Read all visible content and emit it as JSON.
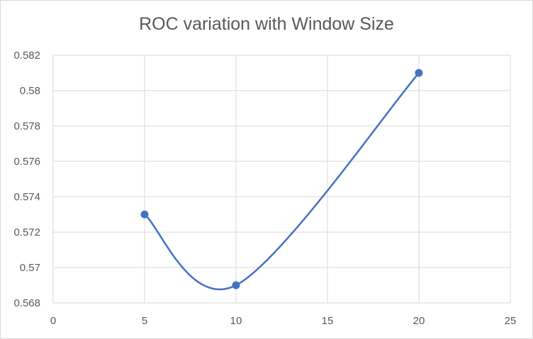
{
  "chart_data": {
    "type": "scatter",
    "title": "ROC variation with Window Size",
    "xlabel": "",
    "ylabel": "",
    "xlim": [
      0,
      25
    ],
    "ylim": [
      0.568,
      0.582
    ],
    "x_ticks": [
      0,
      5,
      10,
      15,
      20,
      25
    ],
    "x_tick_labels": [
      "0",
      "5",
      "10",
      "15",
      "20",
      "25"
    ],
    "y_ticks": [
      0.568,
      0.57,
      0.572,
      0.574,
      0.576,
      0.578,
      0.58,
      0.582
    ],
    "y_tick_labels": [
      "0.568",
      "0.57",
      "0.572",
      "0.574",
      "0.576",
      "0.578",
      "0.58",
      "0.582"
    ],
    "grid": true,
    "smooth_line": true,
    "series": [
      {
        "x": [
          5,
          10,
          20
        ],
        "values": [
          0.573,
          0.569,
          0.581
        ],
        "color": "#4472C4"
      }
    ],
    "gridline_color": "#d9d9d9",
    "text_color": "#595959"
  }
}
